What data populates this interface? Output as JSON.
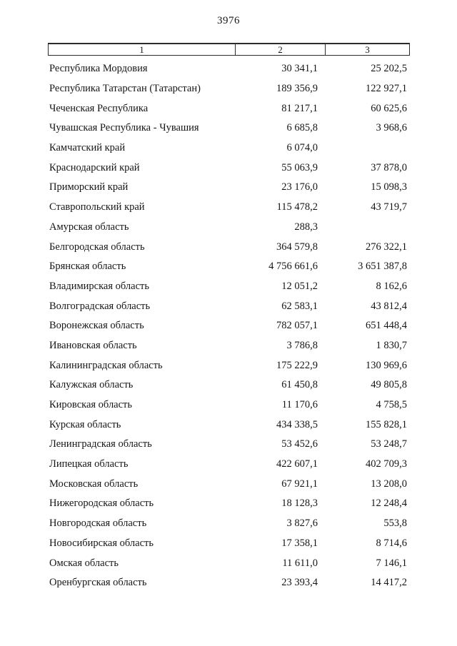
{
  "page": {
    "number": "3976"
  },
  "table": {
    "headers": [
      "1",
      "2",
      "3"
    ],
    "rows": [
      [
        "Республика Мордовия",
        "30 341,1",
        "25 202,5"
      ],
      [
        "Республика Татарстан (Татарстан)",
        "189 356,9",
        "122 927,1"
      ],
      [
        "Чеченская Республика",
        "81 217,1",
        "60 625,6"
      ],
      [
        "Чувашская Республика - Чувашия",
        "6 685,8",
        "3 968,6"
      ],
      [
        "Камчатский край",
        "6 074,0",
        ""
      ],
      [
        "Краснодарский край",
        "55 063,9",
        "37 878,0"
      ],
      [
        "Приморский край",
        "23 176,0",
        "15 098,3"
      ],
      [
        "Ставропольский край",
        "115 478,2",
        "43 719,7"
      ],
      [
        "Амурская область",
        "288,3",
        ""
      ],
      [
        "Белгородская область",
        "364 579,8",
        "276 322,1"
      ],
      [
        "Брянская область",
        "4 756 661,6",
        "3 651 387,8"
      ],
      [
        "Владимирская область",
        "12 051,2",
        "8 162,6"
      ],
      [
        "Волгоградская область",
        "62 583,1",
        "43 812,4"
      ],
      [
        "Воронежская область",
        "782 057,1",
        "651 448,4"
      ],
      [
        "Ивановская область",
        "3 786,8",
        "1 830,7"
      ],
      [
        "Калининградская область",
        "175 222,9",
        "130 969,6"
      ],
      [
        "Калужская область",
        "61 450,8",
        "49 805,8"
      ],
      [
        "Кировская область",
        "11 170,6",
        "4 758,5"
      ],
      [
        "Курская область",
        "434 338,5",
        "155 828,1"
      ],
      [
        "Ленинградская область",
        "53 452,6",
        "53 248,7"
      ],
      [
        "Липецкая область",
        "422 607,1",
        "402 709,3"
      ],
      [
        "Московская область",
        "67 921,1",
        "13 208,0"
      ],
      [
        "Нижегородская область",
        "18 128,3",
        "12 248,4"
      ],
      [
        "Новгородская область",
        "3 827,6",
        "553,8"
      ],
      [
        "Новосибирская область",
        "17 358,1",
        "8 714,6"
      ],
      [
        "Омская область",
        "11 611,0",
        "7 146,1"
      ],
      [
        "Оренбургская область",
        "23 393,4",
        "14 417,2"
      ]
    ]
  }
}
